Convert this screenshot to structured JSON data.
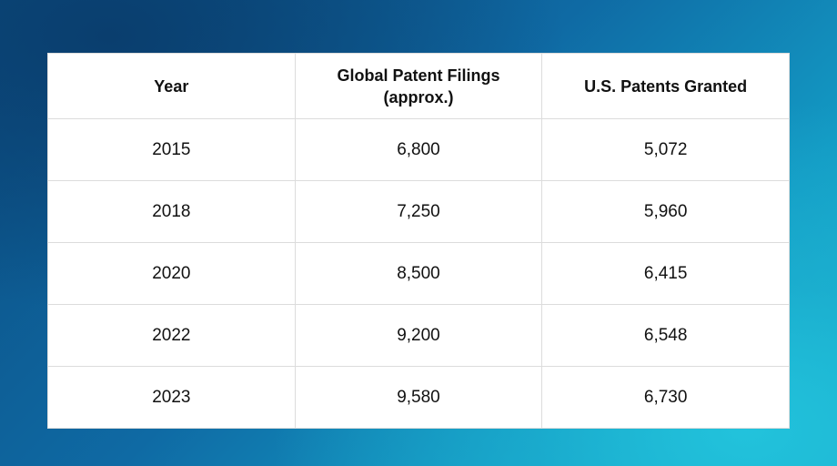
{
  "table": {
    "columns": [
      "Year",
      "Global Patent Filings (approx.)",
      "U.S. Patents Granted"
    ],
    "rows": [
      [
        "2015",
        "6,800",
        "5,072"
      ],
      [
        "2018",
        "7,250",
        "5,960"
      ],
      [
        "2020",
        "8,500",
        "6,415"
      ],
      [
        "2022",
        "9,200",
        "6,548"
      ],
      [
        "2023",
        "9,580",
        "6,730"
      ]
    ]
  }
}
